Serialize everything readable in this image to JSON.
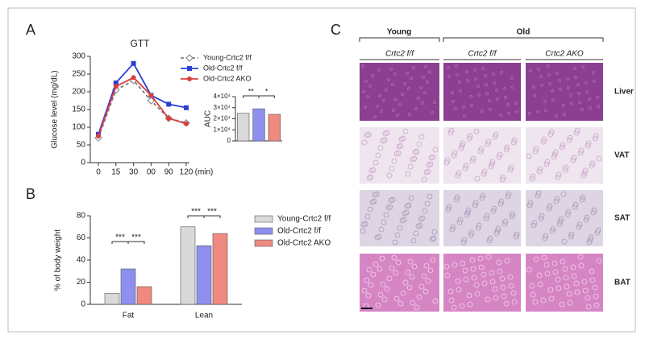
{
  "panels": {
    "a": "A",
    "b": "B",
    "c": "C"
  },
  "chart_data": [
    {
      "type": "line",
      "title": "GTT",
      "y_label": "Glucose level (mg/dL)",
      "x_label": "(min)",
      "categories": [
        "0",
        "15",
        "30",
        "00",
        "90",
        "120"
      ],
      "ylim": [
        0,
        300
      ],
      "yticks": [
        0,
        50,
        100,
        150,
        200,
        250,
        300
      ],
      "series": [
        {
          "name": "Young-Crtc2 f/f",
          "color": "#808080",
          "style": "dashed",
          "marker": "diamond",
          "values": [
            70,
            205,
            232,
            175,
            125,
            112
          ]
        },
        {
          "name": "Old-Crtc2 f/f",
          "color": "#2b3fd6",
          "style": "solid",
          "marker": "square",
          "values": [
            80,
            225,
            280,
            190,
            165,
            155
          ]
        },
        {
          "name": "Old-Crtc2 AKO",
          "color": "#d8403f",
          "style": "solid",
          "marker": "circle",
          "values": [
            75,
            215,
            240,
            190,
            125,
            110
          ]
        }
      ]
    },
    {
      "type": "bar",
      "y_label": "AUC",
      "categories": [
        null,
        null,
        null
      ],
      "values": [
        25000,
        29000,
        24000
      ],
      "colors": [
        "#d9d9d9",
        "#8f8ff0",
        "#ef8a80"
      ],
      "ylim": [
        0,
        40000
      ],
      "yticks": [
        0,
        {
          "value": 10000,
          "label": "1×10⁴"
        },
        {
          "value": 20000,
          "label": "2×10⁴"
        },
        {
          "value": 30000,
          "label": "3×10⁴"
        },
        {
          "value": 40000,
          "label": "4×10⁴"
        }
      ],
      "annotations": [
        "**",
        "*"
      ]
    },
    {
      "type": "grouped-bar",
      "y_label": "% of body weight",
      "categories": [
        "Fat",
        "Lean"
      ],
      "ylim": [
        0,
        80
      ],
      "yticks": [
        0,
        20,
        40,
        60,
        80
      ],
      "series": [
        {
          "name": "Young-Crtc2 f/f",
          "color": "#d9d9d9",
          "values": [
            10,
            70
          ]
        },
        {
          "name": "Old-Crtc2 f/f",
          "color": "#8f8ff0",
          "values": [
            32,
            53
          ]
        },
        {
          "name": "Old-Crtc2 AKO",
          "color": "#ef8a80",
          "values": [
            16,
            64
          ]
        }
      ],
      "annotations": [
        "***",
        "***",
        "***",
        "***"
      ]
    }
  ],
  "histology": {
    "groups": [
      "Young",
      "Old"
    ],
    "columns": [
      "Crtc2 f/f",
      "Crtc2 f/f",
      "Crtc2 AKO"
    ],
    "rows": [
      "Liver",
      "VAT",
      "SAT",
      "BAT"
    ]
  }
}
